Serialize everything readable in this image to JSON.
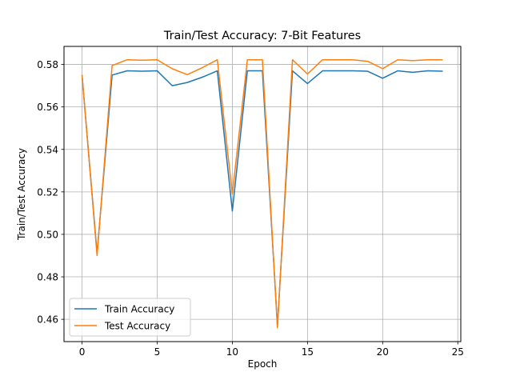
{
  "chart_data": {
    "type": "line",
    "title": "Train/Test Accuracy: 7-Bit Features",
    "xlabel": "Epoch",
    "ylabel": "Train/Test Accuracy",
    "xlim": [
      -1.2,
      25.2
    ],
    "ylim": [
      0.4495,
      0.5885
    ],
    "xticks": [
      0,
      5,
      10,
      15,
      20,
      25
    ],
    "yticks": [
      0.46,
      0.48,
      0.5,
      0.52,
      0.54,
      0.56,
      0.58
    ],
    "grid": true,
    "legend_position": "lower-left",
    "x": [
      0,
      1,
      2,
      3,
      4,
      5,
      6,
      7,
      8,
      9,
      10,
      11,
      12,
      13,
      14,
      15,
      16,
      17,
      18,
      19,
      20,
      21,
      22,
      23,
      24
    ],
    "series": [
      {
        "name": "Train Accuracy",
        "color": "#1f77b4",
        "values": [
          0.575,
          0.491,
          0.575,
          0.577,
          0.5768,
          0.577,
          0.57,
          0.5715,
          0.574,
          0.577,
          0.511,
          0.577,
          0.577,
          0.457,
          0.577,
          0.571,
          0.577,
          0.577,
          0.577,
          0.5768,
          0.5735,
          0.577,
          0.5763,
          0.577,
          0.5768
        ]
      },
      {
        "name": "Test Accuracy",
        "color": "#ff7f0e",
        "values": [
          0.575,
          0.49,
          0.5795,
          0.5822,
          0.582,
          0.5822,
          0.578,
          0.5752,
          0.5785,
          0.5822,
          0.519,
          0.5822,
          0.5822,
          0.456,
          0.5822,
          0.5755,
          0.5822,
          0.5822,
          0.5822,
          0.5815,
          0.578,
          0.5822,
          0.5818,
          0.5822,
          0.5822
        ]
      }
    ]
  }
}
